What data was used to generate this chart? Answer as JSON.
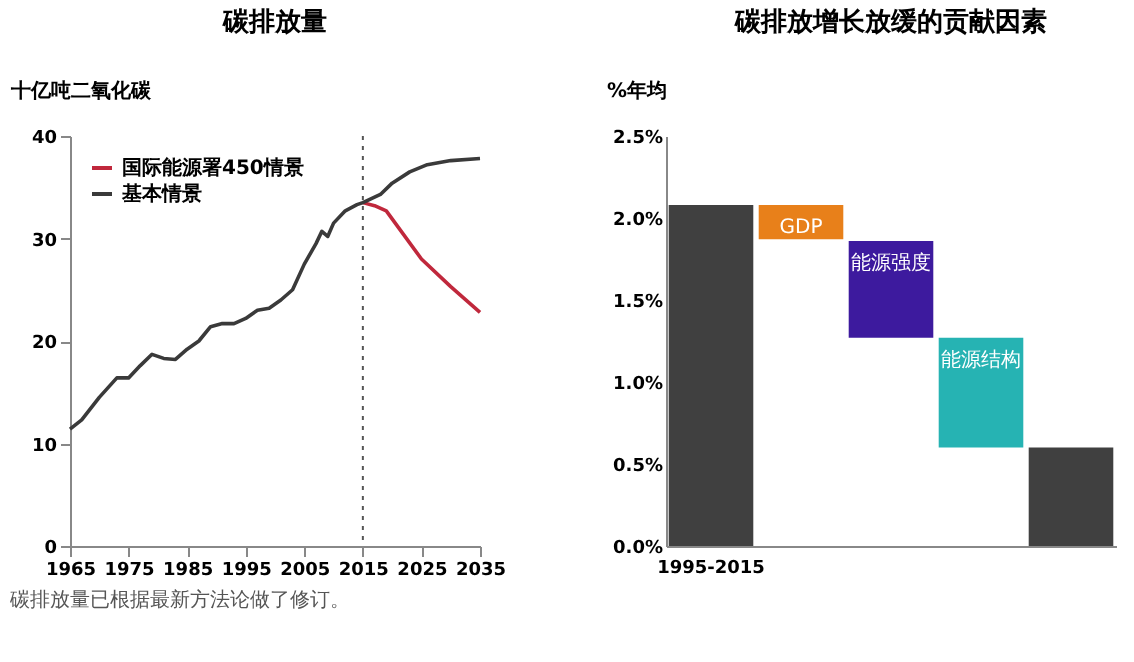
{
  "chart_data": [
    {
      "type": "line",
      "title": "碳排放量",
      "ylabel": "十亿吨二氧化碳",
      "xlim": [
        1965,
        2035
      ],
      "xticks": [
        1965,
        1975,
        1985,
        1995,
        2005,
        2015,
        2025,
        2035
      ],
      "ylim": [
        0,
        40
      ],
      "yticks": [
        0,
        10,
        20,
        30,
        40
      ],
      "legend": "top left",
      "grid": false,
      "series": [
        {
          "name": "国际能源署450情景",
          "color": "#c0283c",
          "x": [
            2015,
            2017,
            2019,
            2025,
            2030,
            2035
          ],
          "values": [
            33.5,
            33.2,
            32.7,
            28.0,
            25.3,
            22.8
          ]
        },
        {
          "name": "基本情景",
          "color": "#3a3a3a",
          "x": [
            1965,
            1967,
            1970,
            1973,
            1975,
            1977,
            1979,
            1981,
            1983,
            1985,
            1987,
            1989,
            1991,
            1993,
            1995,
            1997,
            1999,
            2001,
            2003,
            2005,
            2007,
            2008,
            2009,
            2010,
            2012,
            2014,
            2015,
            2018,
            2020,
            2023,
            2026,
            2030,
            2035
          ],
          "values": [
            11.4,
            12.3,
            14.5,
            16.4,
            16.4,
            17.6,
            18.7,
            18.3,
            18.2,
            19.2,
            20.0,
            21.4,
            21.7,
            21.7,
            22.2,
            23.0,
            23.2,
            24.0,
            25.0,
            27.5,
            29.5,
            30.7,
            30.2,
            31.5,
            32.7,
            33.3,
            33.5,
            34.3,
            35.4,
            36.5,
            37.2,
            37.6,
            37.8
          ]
        }
      ],
      "ref_lines": [
        {
          "axis": "x",
          "value": 2015,
          "color": "#555555",
          "line_style": "dotted"
        }
      ],
      "annotations": [
        "碳排放量已根据最新方法论做了修订。"
      ]
    },
    {
      "type": "bar",
      "title": "碳排放增长放缓的贡献因素",
      "ylabel": "%年均",
      "categories": [
        "1995-2015",
        "GDP",
        "能源强度",
        "能源结构",
        null
      ],
      "values": [
        2.08,
        0.21,
        0.59,
        0.67,
        0.6
      ],
      "base": [
        0,
        1.87,
        1.27,
        0.6,
        0
      ],
      "colors": [
        "#404040",
        "#e8801a",
        "#3d1a9e",
        "#26b3b3",
        "#404040"
      ],
      "ylim": [
        0,
        2.5
      ],
      "yticks": [
        {
          "value": 0,
          "label": "0.0%"
        },
        {
          "value": 0.5,
          "label": "0.5%"
        },
        {
          "value": 1.0,
          "label": "1.0%"
        },
        {
          "value": 1.5,
          "label": "1.5%"
        },
        {
          "value": 2.0,
          "label": "2.0%"
        },
        {
          "value": 2.5,
          "label": "2.5%"
        }
      ],
      "grid": false
    }
  ]
}
